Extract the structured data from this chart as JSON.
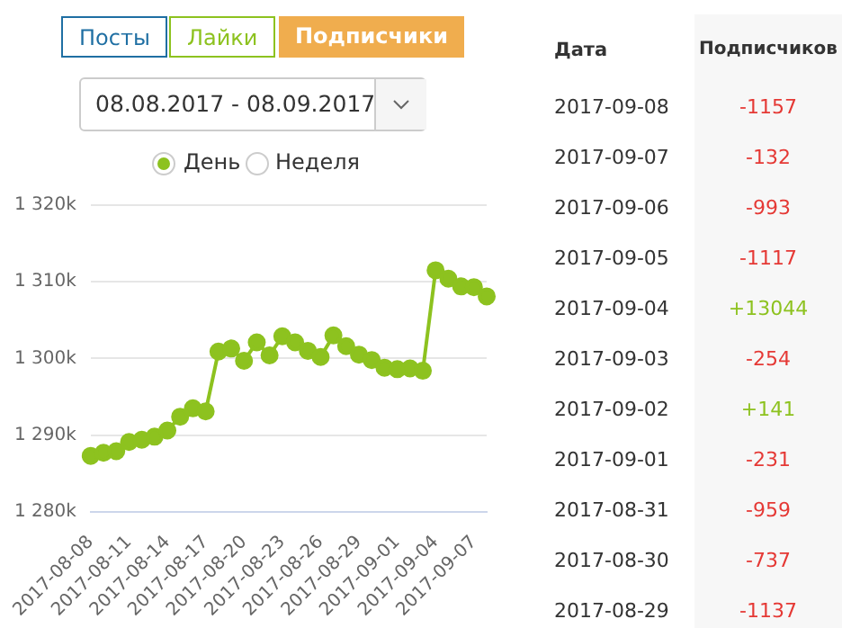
{
  "chart_data": [
    {
      "type": "line",
      "color": "#8dc21f",
      "marker": "circle",
      "grid": "y",
      "legend": false,
      "categories": [
        "2017-08-08",
        null,
        null,
        "2017-08-11",
        null,
        null,
        "2017-08-14",
        null,
        null,
        "2017-08-17",
        null,
        null,
        "2017-08-20",
        null,
        null,
        "2017-08-23",
        null,
        null,
        "2017-08-26",
        null,
        null,
        "2017-08-29",
        null,
        null,
        "2017-09-01",
        null,
        null,
        "2017-09-04",
        null,
        null,
        "2017-09-07",
        null
      ],
      "values": [
        1287.3,
        1287.7,
        1287.9,
        1289.1,
        1289.4,
        1289.8,
        1290.6,
        1292.4,
        1293.5,
        1293.1,
        1300.9,
        1301.3,
        1299.7,
        1302.1,
        1300.4,
        1302.9,
        1302.1,
        1301.0,
        1300.2,
        1303.0,
        1301.6,
        1300.5,
        1299.8,
        1298.8,
        1298.6,
        1298.7,
        1298.4,
        1311.5,
        1310.4,
        1309.4,
        1309.3,
        1308.1
      ],
      "ylim": [
        1280,
        1320
      ],
      "yticks": [
        {
          "value": 1280,
          "label": "1 280k"
        },
        {
          "value": 1290,
          "label": "1 290k"
        },
        {
          "value": 1300,
          "label": "1 300k"
        },
        {
          "value": 1310,
          "label": "1 310k"
        },
        {
          "value": 1320,
          "label": "1 320k"
        }
      ],
      "annotations": [
        "Посты",
        "Лайки",
        "Подписчики",
        "08.08.2017 - 08.09.2017",
        "День",
        "Неделя"
      ]
    },
    {
      "type": "other",
      "xlabel": "Дата",
      "ylabel": "Подписчиков",
      "categories": [
        "2017-09-08",
        "2017-09-07",
        "2017-09-06",
        "2017-09-05",
        "2017-09-04",
        "2017-09-03",
        "2017-09-02",
        "2017-09-01",
        "2017-08-31",
        "2017-08-30",
        "2017-08-29"
      ],
      "value_labels": [
        "-1157",
        "-132",
        "-993",
        "-1117",
        "+13044",
        "-254",
        "+141",
        "-231",
        "-959",
        "-737",
        "-1137"
      ],
      "colors": [
        "#e53935",
        "#e53935",
        "#e53935",
        "#e53935",
        "#8dc21f",
        "#e53935",
        "#8dc21f",
        "#e53935",
        "#e53935",
        "#e53935",
        "#e53935"
      ]
    }
  ]
}
